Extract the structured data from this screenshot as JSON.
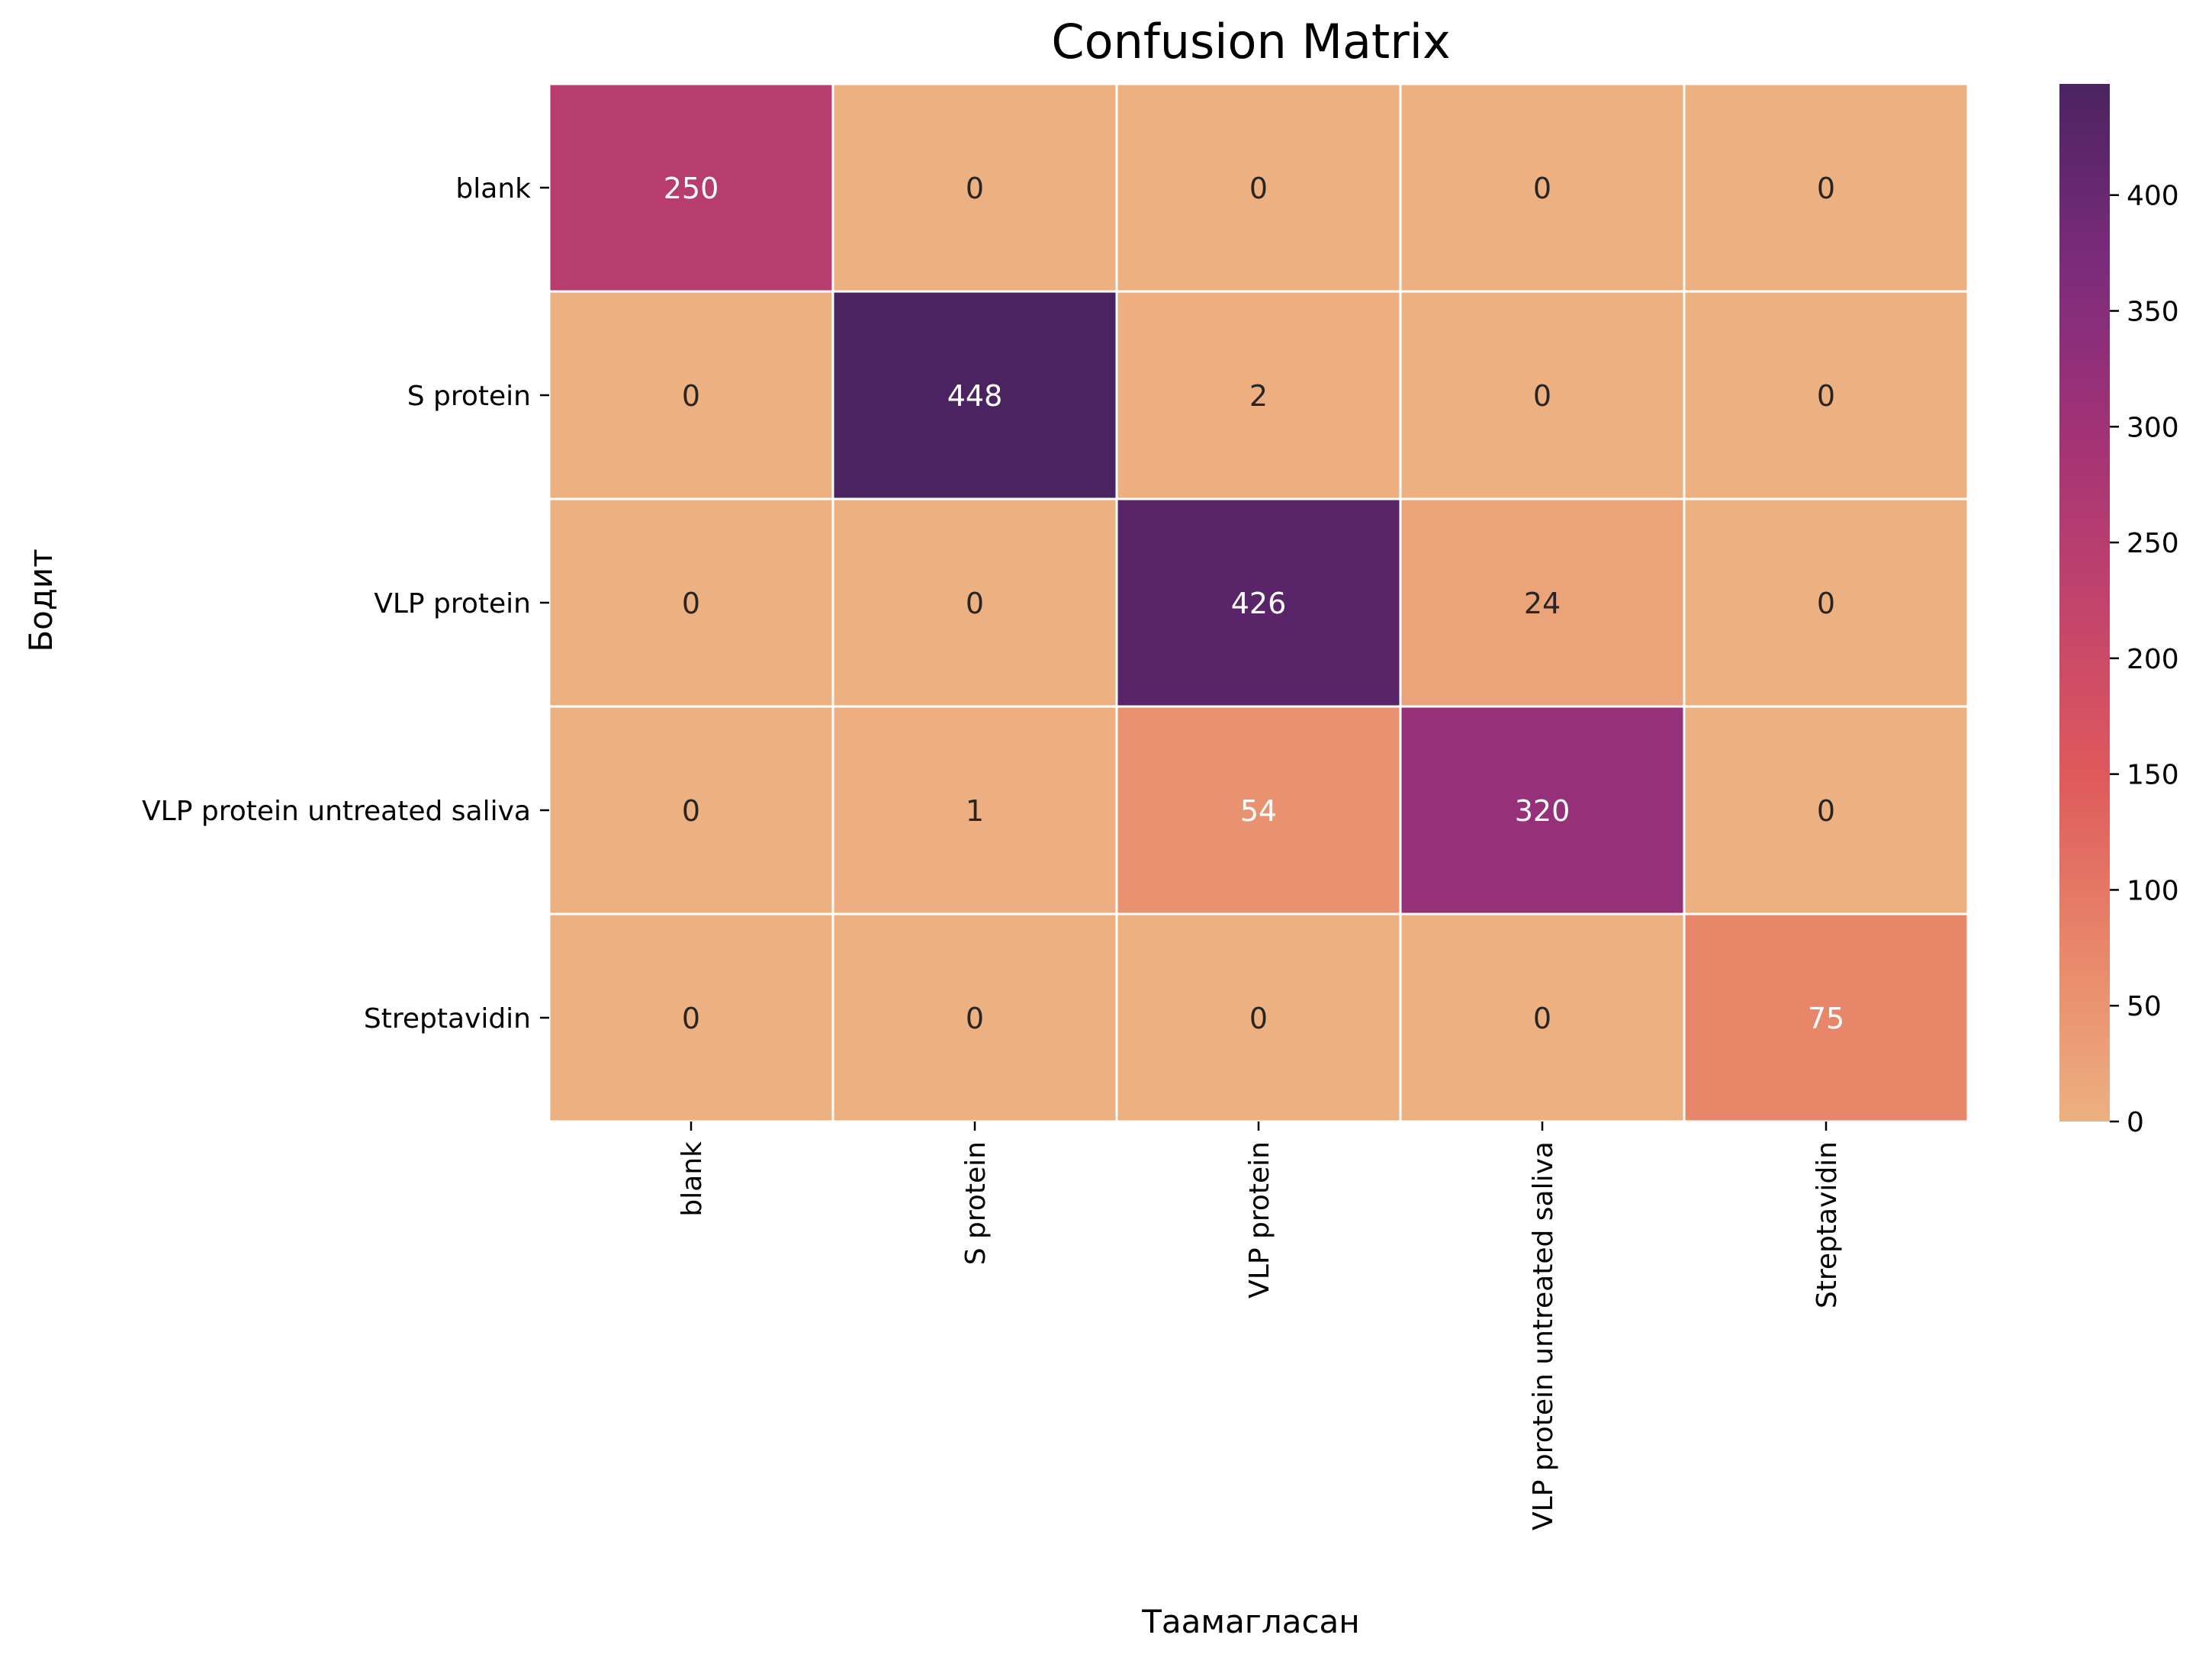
{
  "chart_data": {
    "type": "heatmap",
    "title": "Confusion Matrix",
    "xlabel": "Таамагласан",
    "ylabel": "Бодит",
    "x_categories": [
      "blank",
      "S protein",
      "VLP protein",
      "VLP protein untreated saliva",
      "Streptavidin"
    ],
    "y_categories": [
      "blank",
      "S protein",
      "VLP protein",
      "VLP protein untreated saliva",
      "Streptavidin"
    ],
    "values": [
      [
        250,
        0,
        0,
        0,
        0
      ],
      [
        0,
        448,
        2,
        0,
        0
      ],
      [
        0,
        0,
        426,
        24,
        0
      ],
      [
        0,
        1,
        54,
        320,
        0
      ],
      [
        0,
        0,
        0,
        0,
        75
      ]
    ],
    "colorbar": {
      "vmin": 0,
      "vmax": 448,
      "ticks": [
        "0",
        "50",
        "100",
        "150",
        "200",
        "250",
        "300",
        "350",
        "400"
      ],
      "colormap": "flare",
      "colors": [
        "#edb081",
        "#e8866a",
        "#de5a5b",
        "#c2436c",
        "#a13276",
        "#7a2b7c",
        "#4b2360"
      ]
    },
    "grid_lines": true,
    "legend": "colorbar-right"
  }
}
